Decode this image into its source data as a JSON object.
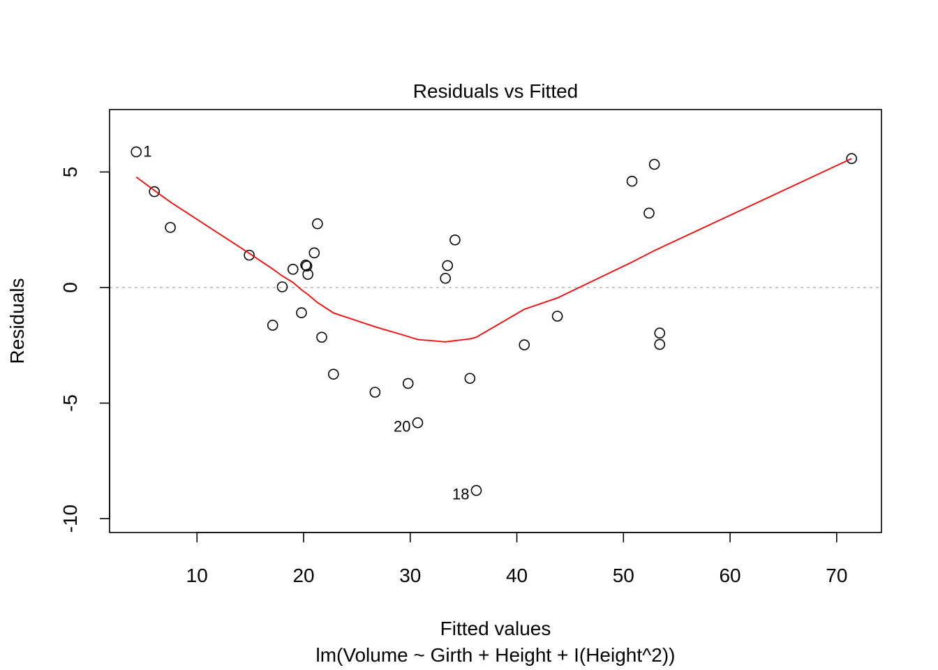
{
  "chart_data": {
    "type": "scatter",
    "title": "Residuals vs Fitted",
    "xlabel": "Fitted values",
    "subtitle": "lm(Volume ~ Girth + Height + I(Height^2))",
    "ylabel": "Residuals",
    "xlim": [
      1.8,
      74.2
    ],
    "ylim": [
      -10.6,
      7.7
    ],
    "x_ticks": [
      10,
      20,
      30,
      40,
      50,
      60,
      70
    ],
    "y_ticks": [
      -10,
      -5,
      0,
      5
    ],
    "colors": {
      "points": "#000000",
      "smooth": "#ff0000",
      "zero_line": "#bebebe"
    },
    "points": [
      {
        "x": 4.3,
        "y": 5.87,
        "label": "1"
      },
      {
        "x": 6.0,
        "y": 4.15
      },
      {
        "x": 7.5,
        "y": 2.6
      },
      {
        "x": 14.9,
        "y": 1.4
      },
      {
        "x": 17.1,
        "y": -1.63
      },
      {
        "x": 18.0,
        "y": 0.03
      },
      {
        "x": 19.0,
        "y": 0.79
      },
      {
        "x": 19.8,
        "y": -1.09
      },
      {
        "x": 20.2,
        "y": 0.97
      },
      {
        "x": 20.3,
        "y": 0.93
      },
      {
        "x": 20.4,
        "y": 0.57
      },
      {
        "x": 21.0,
        "y": 1.5
      },
      {
        "x": 21.3,
        "y": 2.76
      },
      {
        "x": 21.7,
        "y": -2.15
      },
      {
        "x": 22.8,
        "y": -3.75
      },
      {
        "x": 26.7,
        "y": -4.53
      },
      {
        "x": 29.8,
        "y": -4.15
      },
      {
        "x": 30.7,
        "y": -5.85,
        "label": "20"
      },
      {
        "x": 33.3,
        "y": 0.4
      },
      {
        "x": 33.5,
        "y": 0.95
      },
      {
        "x": 34.2,
        "y": 2.06
      },
      {
        "x": 35.6,
        "y": -3.93
      },
      {
        "x": 36.2,
        "y": -8.78,
        "label": "18"
      },
      {
        "x": 40.7,
        "y": -2.48
      },
      {
        "x": 43.8,
        "y": -1.24
      },
      {
        "x": 50.8,
        "y": 4.6
      },
      {
        "x": 52.4,
        "y": 3.22
      },
      {
        "x": 52.9,
        "y": 5.33
      },
      {
        "x": 53.4,
        "y": -1.97
      },
      {
        "x": 53.4,
        "y": -2.46
      },
      {
        "x": 71.4,
        "y": 5.58
      }
    ],
    "smooth": {
      "x": [
        4.3,
        6.0,
        7.5,
        14.9,
        17.1,
        18.0,
        19.0,
        19.8,
        20.4,
        21.3,
        22.8,
        26.7,
        29.8,
        30.7,
        33.3,
        35.6,
        36.2,
        40.7,
        43.8,
        50.8,
        52.9,
        71.4
      ],
      "y": [
        4.78,
        4.2,
        3.7,
        1.48,
        0.8,
        0.5,
        0.22,
        -0.1,
        -0.3,
        -0.65,
        -1.1,
        -1.7,
        -2.12,
        -2.25,
        -2.35,
        -2.22,
        -2.15,
        -0.94,
        -0.45,
        1.1,
        1.6,
        5.58
      ]
    },
    "labeled_points": [
      "1",
      "20",
      "18"
    ]
  }
}
